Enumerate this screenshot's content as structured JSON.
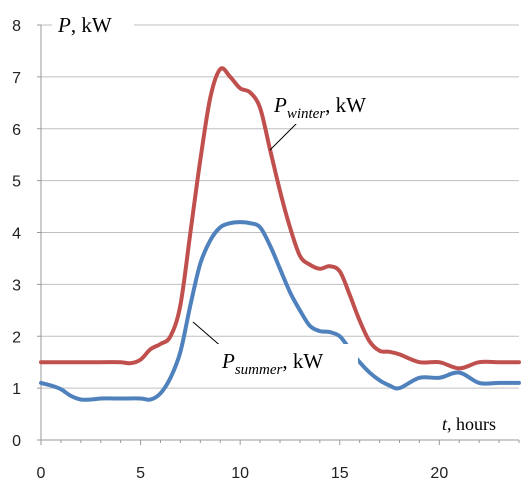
{
  "chart_data": {
    "type": "line",
    "xlim": [
      0,
      24
    ],
    "ylim": [
      0,
      8
    ],
    "x_ticks": [
      0,
      5,
      10,
      15,
      20
    ],
    "y_ticks": [
      0,
      1,
      2,
      3,
      4,
      5,
      6,
      7,
      8
    ],
    "grid": true,
    "y_axis_label": {
      "symbol": "P",
      "rest": ", kW"
    },
    "x_axis_label": {
      "symbol": "t",
      "rest": ", hours"
    },
    "series": [
      {
        "label": {
          "symbol": "P",
          "sub": "winter",
          "rest": ", kW"
        },
        "color": "#c0504d",
        "x": [
          0,
          1,
          2,
          3,
          4,
          4.5,
          5,
          5.5,
          6,
          6.5,
          7,
          7.5,
          8,
          8.5,
          9,
          9.5,
          10,
          10.5,
          11,
          11.5,
          12,
          12.5,
          13,
          13.5,
          14,
          14.5,
          15,
          15.5,
          16,
          16.5,
          17,
          17.5,
          18,
          19,
          20,
          21,
          22,
          23,
          24
        ],
        "y": [
          1.5,
          1.5,
          1.5,
          1.5,
          1.5,
          1.48,
          1.55,
          1.75,
          1.85,
          2.0,
          2.6,
          4.0,
          5.4,
          6.6,
          7.15,
          7.0,
          6.78,
          6.7,
          6.4,
          5.6,
          4.8,
          4.1,
          3.55,
          3.38,
          3.3,
          3.35,
          3.25,
          2.8,
          2.3,
          1.9,
          1.72,
          1.7,
          1.65,
          1.5,
          1.5,
          1.38,
          1.5,
          1.5,
          1.5
        ]
      },
      {
        "label": {
          "symbol": "P",
          "sub": "summer",
          "rest": ", kW"
        },
        "color": "#4f81bd",
        "x": [
          0,
          0.5,
          1,
          1.5,
          2,
          2.5,
          3,
          4,
          5,
          5.5,
          6,
          6.5,
          7,
          7.5,
          8,
          8.5,
          9,
          9.5,
          10,
          10.5,
          11,
          11.5,
          12,
          12.5,
          13,
          13.5,
          14,
          14.5,
          15,
          15.5,
          16,
          16.5,
          17,
          17.5,
          18,
          19,
          20,
          21,
          22,
          23,
          24
        ],
        "y": [
          1.1,
          1.05,
          0.98,
          0.85,
          0.78,
          0.78,
          0.8,
          0.8,
          0.8,
          0.78,
          0.9,
          1.2,
          1.7,
          2.6,
          3.4,
          3.85,
          4.1,
          4.18,
          4.2,
          4.18,
          4.1,
          3.75,
          3.3,
          2.85,
          2.5,
          2.2,
          2.1,
          2.08,
          2.0,
          1.75,
          1.5,
          1.3,
          1.15,
          1.05,
          1.0,
          1.2,
          1.2,
          1.3,
          1.1,
          1.1,
          1.1
        ]
      }
    ]
  }
}
